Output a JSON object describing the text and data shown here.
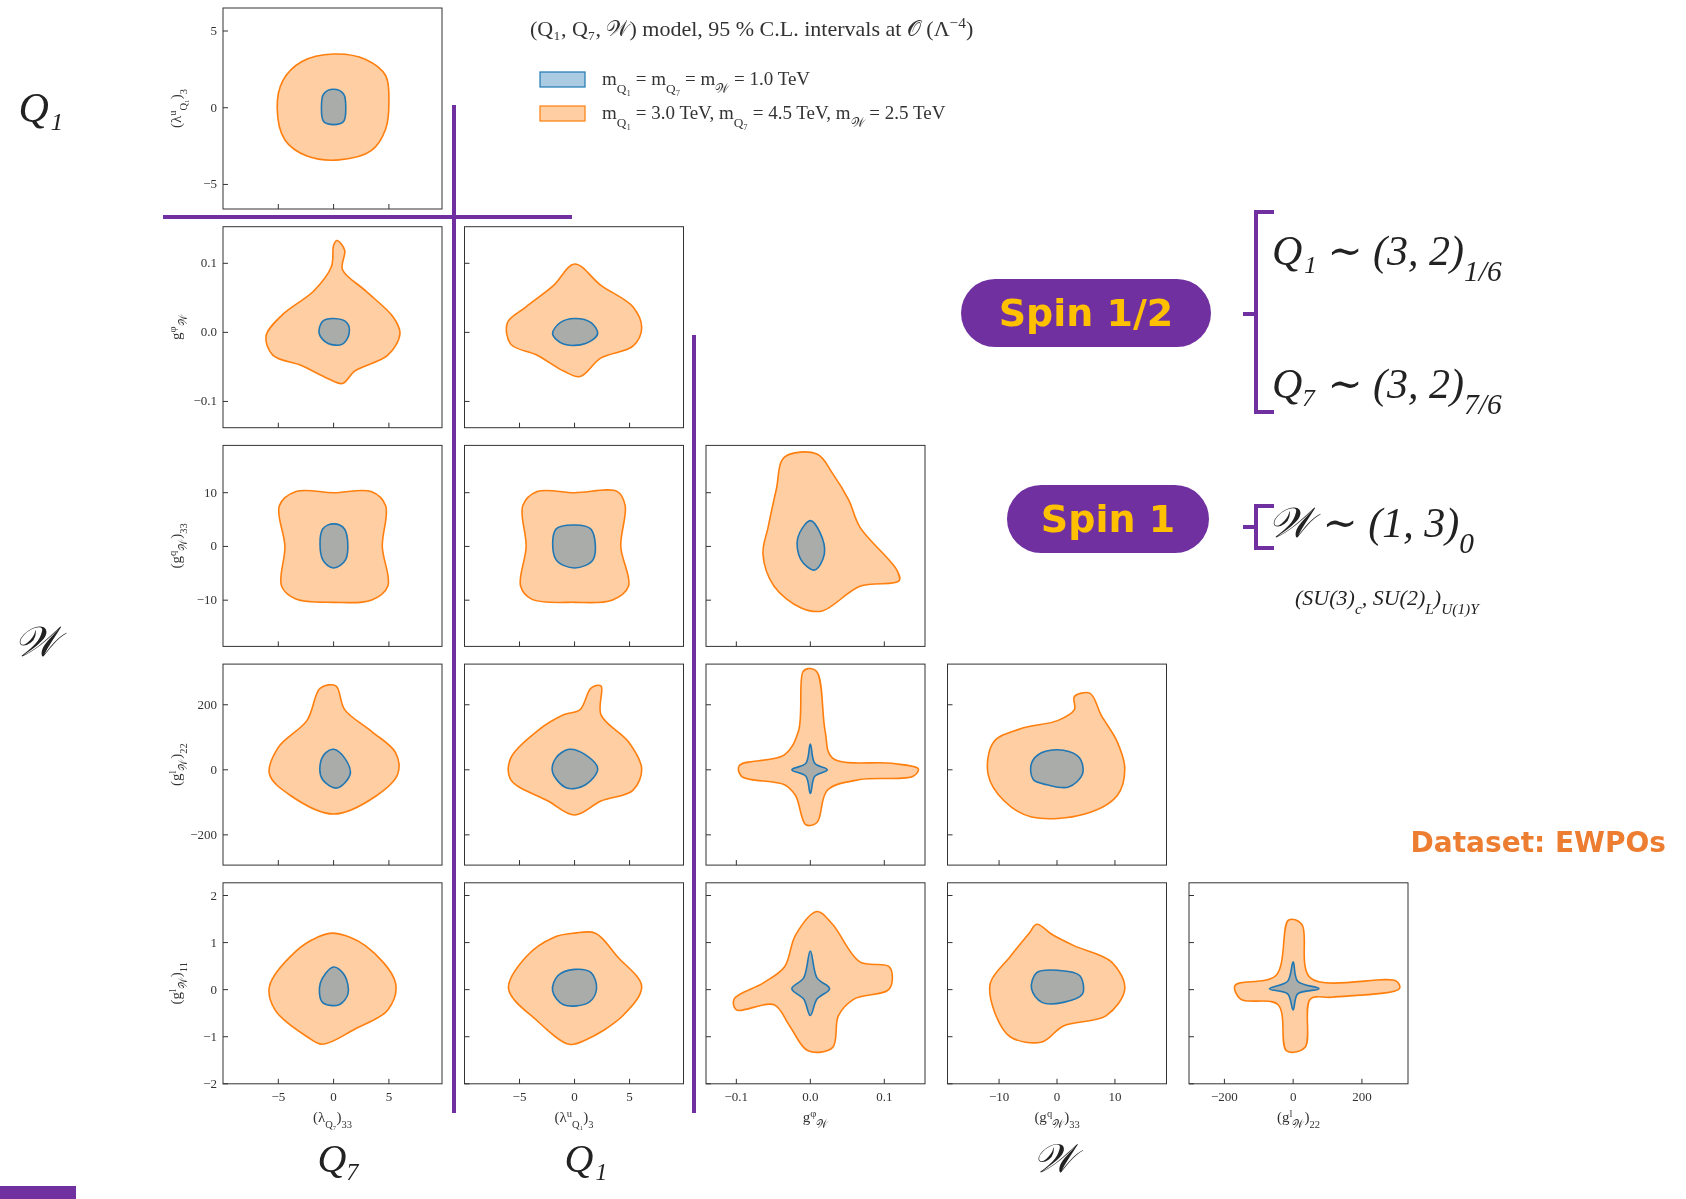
{
  "chart_data": [
    {
      "type": "area",
      "legend": "top right",
      "annotations": [
        "Q₁",
        "𝒲",
        "Q₇",
        "Q₁",
        "𝒲",
        "Spin 1/2",
        "Spin 1",
        "Q₁ ∼ (3, 2)$_{1/6}$",
        "Q₇ ∼ (3, 2)$_{7/6}$",
        "𝒲 ∼ (1, 3)$_{0}$",
        "(SU(3)$_{c}$, SU(2)$_{L}$)$_{U(1)Y}$",
        "Dataset: EWPOs",
        "(Q₁, Q₇, 𝒲) model, 95 % C.L. intervals at 𝒪 (Λ$^{−4}$)"
      ],
      "xlim": [
        -10,
        9.8
      ],
      "xticks": [
        -5,
        0,
        5
      ],
      "ylim": [
        -6.6,
        6.5
      ],
      "yticks": [
        -5,
        0,
        5
      ],
      "ylabel": "(λ$^{u}$$_{Q₁}$)$_{3}$",
      "tick_labels": "y",
      "series": [
        {
          "name": "m$_{Q₁}$ = 3.0 TeV, m$_{Q₇}$ = 4.5 TeV, m$_{𝒲}$ = 2.5 TeV",
          "color": "#ff7f0e",
          "x": [
            0,
            2.9,
            4.7,
            5.0,
            4.7,
            3.4,
            0.5,
            -2.4,
            -4.4,
            -5.1,
            -4.6,
            -2.9
          ],
          "values": [
            3.5,
            3.15,
            2.1,
            0.35,
            -1.4,
            -2.8,
            -3.4,
            -3.15,
            -2.1,
            0,
            1.75,
            3.0
          ]
        },
        {
          "name": "m$_{Q₁}$ = m$_{Q₇}$ = m$_{𝒲}$ = 1.0 TeV",
          "color": "#1f77b4",
          "x": [
            0,
            0.9,
            1.1,
            0.9,
            0,
            -0.9,
            -1.1,
            -0.9
          ],
          "values": [
            1.2,
            0.9,
            0,
            -0.9,
            -1.1,
            -0.9,
            0,
            0.9
          ]
        }
      ]
    },
    {
      "type": "area",
      "xlim": [
        -10,
        9.8
      ],
      "xticks": [
        -5,
        0,
        5
      ],
      "ylim": [
        -0.138,
        0.153
      ],
      "yticks": [
        {
          "value": -0.1,
          "label": "−0.1"
        },
        {
          "value": 0,
          "label": "0.0"
        },
        {
          "value": 0.1,
          "label": "0.1"
        }
      ],
      "ylabel": "g$^{φ}$$_{𝒲}$",
      "tick_labels": "y",
      "series": [
        {
          "color": "#ff7f0e",
          "x": [
            0.3,
            1.0,
            0.8,
            2.9,
            5.4,
            6.0,
            4.9,
            1.9,
            0.8,
            -0.5,
            -2.9,
            -5.5,
            -6.1,
            -4.6,
            -1.8,
            -0.2,
            0
          ],
          "values": [
            0.133,
            0.119,
            0.091,
            0.06,
            0.022,
            -0.002,
            -0.033,
            -0.056,
            -0.074,
            -0.067,
            -0.048,
            -0.033,
            -0.005,
            0.026,
            0.06,
            0.095,
            0.126
          ]
        },
        {
          "color": "#1f77b4",
          "x": [
            0,
            1.2,
            1.4,
            0.8,
            -0.5,
            -1.3,
            -1.0
          ],
          "values": [
            0.02,
            0.014,
            -0.002,
            -0.017,
            -0.016,
            -0.002,
            0.016
          ]
        }
      ]
    },
    {
      "type": "area",
      "xlim": [
        -10,
        9.9
      ],
      "xticks": [
        -5,
        0,
        5
      ],
      "ylim": [
        -0.138,
        0.153
      ],
      "yticks": [
        -0.1,
        0,
        0.1
      ],
      "tick_labels": false,
      "series": [
        {
          "color": "#ff7f0e",
          "x": [
            0,
            2.4,
            5.3,
            6.1,
            5.3,
            2.4,
            0.5,
            -1.0,
            -3.4,
            -5.8,
            -6.1,
            -4.4,
            -1.9
          ],
          "values": [
            0.099,
            0.068,
            0.037,
            0.006,
            -0.02,
            -0.037,
            -0.064,
            -0.056,
            -0.033,
            -0.017,
            0.014,
            0.037,
            0.068
          ]
        },
        {
          "color": "#1f77b4",
          "x": [
            0,
            1.5,
            2.1,
            1.0,
            -1.0,
            -2.0,
            -1.3
          ],
          "values": [
            0.02,
            0.014,
            -0.002,
            -0.016,
            -0.017,
            -0.002,
            0.014
          ]
        }
      ]
    },
    {
      "type": "area",
      "xlim": [
        -10,
        9.8
      ],
      "xticks": [
        -5,
        0,
        5
      ],
      "ylim": [
        -18.6,
        18.8
      ],
      "yticks": [
        -10,
        0,
        10
      ],
      "ylabel": "(g$^{q}$$_{𝒲}$)$_{33}$",
      "tick_labels": "y",
      "series": [
        {
          "color": "#ff7f0e",
          "x": [
            0,
            3.4,
            4.7,
            4.4,
            4.9,
            3.4,
            0,
            -3.4,
            -4.7,
            -4.4,
            -4.9,
            -3.4
          ],
          "values": [
            10,
            10.2,
            7.6,
            0,
            -7.4,
            -10,
            -10.4,
            -9.8,
            -7.4,
            0,
            7.6,
            10.2
          ]
        },
        {
          "color": "#1f77b4",
          "x": [
            0,
            1.0,
            1.1,
            0,
            -1.0,
            -1.0
          ],
          "values": [
            4.2,
            3.2,
            -2.4,
            -4,
            -2.4,
            3.2
          ]
        }
      ]
    },
    {
      "type": "area",
      "xlim": [
        -10,
        9.9
      ],
      "xticks": [
        -5,
        0,
        5
      ],
      "ylim": [
        -18.6,
        18.8
      ],
      "yticks": [
        -10,
        0,
        10
      ],
      "tick_labels": false,
      "series": [
        {
          "color": "#ff7f0e",
          "x": [
            0,
            3.9,
            4.6,
            4.2,
            4.9,
            3.4,
            0,
            -3.9,
            -4.9,
            -4.4,
            -4.7,
            -3.4
          ],
          "values": [
            10,
            10.2,
            7.6,
            0,
            -7.4,
            -10,
            -10.4,
            -9.8,
            -7.4,
            0,
            7.6,
            10.2
          ]
        },
        {
          "color": "#1f77b4",
          "x": [
            0,
            1.5,
            1.7,
            0,
            -1.7,
            -1.7
          ],
          "values": [
            4,
            3.2,
            -2.4,
            -4,
            -2.4,
            3.2
          ]
        }
      ]
    },
    {
      "type": "area",
      "xlim": [
        -0.141,
        0.155
      ],
      "xticks": [
        -0.1,
        0,
        0.1
      ],
      "ylim": [
        -18.6,
        18.8
      ],
      "yticks": [
        -10,
        0,
        10
      ],
      "tick_labels": false,
      "series": [
        {
          "color": "#ff7f0e",
          "x": [
            -0.035,
            0.009,
            0.03,
            0.052,
            0.067,
            0.117,
            0.12,
            0.067,
            0.016,
            -0.013,
            -0.049,
            -0.064,
            -0.057,
            -0.046
          ],
          "values": [
            16.6,
            17.2,
            13.6,
            8.6,
            3.6,
            -4.4,
            -6.4,
            -7.4,
            -12,
            -11.4,
            -7.4,
            -1.4,
            3.6,
            10.6
          ]
        },
        {
          "color": "#1f77b4",
          "x": [
            0,
            0.013,
            0.019,
            0.006,
            -0.013,
            -0.017
          ],
          "values": [
            4.8,
            2.6,
            -1.4,
            -4.4,
            -2.4,
            1.6
          ]
        }
      ]
    },
    {
      "type": "area",
      "xlim": [
        -10,
        9.8
      ],
      "xticks": [
        -5,
        0,
        5
      ],
      "ylim": [
        -293,
        325
      ],
      "yticks": [
        -200,
        0,
        200
      ],
      "ylabel": "(g$^{l}$$_{𝒲}$)$_{22}$",
      "tick_labels": "y",
      "series": [
        {
          "color": "#ff7f0e",
          "x": [
            -1.2,
            0.2,
            1.0,
            3.4,
            5.6,
            5.8,
            3.9,
            0,
            -3.9,
            -5.8,
            -5.0,
            -2.4
          ],
          "values": [
            251,
            258,
            185,
            119,
            53,
            -13,
            -79,
            -136,
            -79,
            -13,
            69,
            152
          ]
        },
        {
          "color": "#1f77b4",
          "x": [
            0,
            1.0,
            1.5,
            0.3,
            -1.0,
            -1.2,
            -0.7
          ],
          "values": [
            63,
            36,
            -13,
            -56,
            -30,
            20,
            53
          ]
        }
      ]
    },
    {
      "type": "area",
      "xlim": [
        -10,
        9.9
      ],
      "xticks": [
        -5,
        0,
        5
      ],
      "ylim": [
        -293,
        325
      ],
      "yticks": [
        -200,
        0,
        200
      ],
      "tick_labels": false,
      "series": [
        {
          "color": "#ff7f0e",
          "x": [
            1.5,
            2.4,
            2.4,
            4.9,
            6.1,
            5.3,
            2.4,
            0,
            -2.4,
            -5.8,
            -5.8,
            -3.4,
            -1.0,
            0.5
          ],
          "values": [
            251,
            258,
            169,
            86,
            3,
            -63,
            -96,
            -139,
            -96,
            -30,
            36,
            119,
            169,
            185
          ]
        },
        {
          "color": "#1f77b4",
          "x": [
            -0.5,
            1.0,
            2.1,
            1.0,
            -0.7,
            -2.0,
            -1.7
          ],
          "values": [
            63,
            46,
            3,
            -46,
            -56,
            -7,
            36
          ]
        }
      ]
    },
    {
      "type": "area",
      "xlim": [
        -0.141,
        0.155
      ],
      "xticks": [
        -0.1,
        0,
        0.1
      ],
      "ylim": [
        -293,
        325
      ],
      "yticks": [
        -200,
        0,
        200
      ],
      "tick_labels": false,
      "series": [
        {
          "color": "#ff7f0e",
          "x": [
            -0.003,
            0.009,
            0.02,
            0.03,
            0.11,
            0.146,
            0.139,
            0.067,
            0.023,
            0.009,
            -0.006,
            -0.02,
            -0.035,
            -0.093,
            -0.096,
            -0.035,
            -0.016,
            -0.01
          ],
          "values": [
            311,
            301,
            119,
            36,
            20,
            3,
            -20,
            -30,
            -63,
            -162,
            -169,
            -79,
            -46,
            -20,
            13,
            46,
            119,
            301
          ]
        },
        {
          "color": "#1f77b4",
          "x": [
            0,
            0.006,
            0.023,
            0.006,
            0,
            -0.006,
            -0.025,
            -0.006
          ],
          "values": [
            79,
            20,
            0,
            -20,
            -73,
            -20,
            0,
            20
          ]
        }
      ]
    },
    {
      "type": "area",
      "xlim": [
        -18.9,
        18.9
      ],
      "xticks": [
        -10,
        0,
        10
      ],
      "ylim": [
        -293,
        325
      ],
      "yticks": [
        -200,
        0,
        200
      ],
      "tick_labels": false,
      "series": [
        {
          "color": "#ff7f0e",
          "x": [
            3.0,
            5.7,
            7.6,
            10.4,
            11.7,
            10.4,
            4.8,
            -4.4,
            -9.1,
            -11.9,
            -10.9,
            -6.3,
            0.2,
            3.0
          ],
          "values": [
            225,
            235,
            169,
            86,
            3,
            -79,
            -136,
            -145,
            -96,
            -13,
            86,
            126,
            152,
            185
          ]
        },
        {
          "color": "#1f77b4",
          "x": [
            -2.6,
            1.1,
            3.9,
            4.4,
            2.0,
            -1.7,
            -4.1,
            -4.4
          ],
          "values": [
            53,
            60,
            36,
            -13,
            -53,
            -46,
            -30,
            20
          ]
        }
      ]
    },
    {
      "type": "area",
      "xlim": [
        -10,
        9.8
      ],
      "xticks": [
        -5,
        0,
        5
      ],
      "ylim": [
        -2,
        2.27
      ],
      "yticks": [
        -2,
        -1,
        0,
        1,
        2
      ],
      "xlabel": "(λ$_{Q₇}$)$_{33}$",
      "ylabel": "(g$^{l}$$_{𝒲}$)$_{11}$",
      "series": [
        {
          "color": "#ff7f0e",
          "x": [
            0,
            2.9,
            5.6,
            4.9,
            1.9,
            -1.0,
            -2.4,
            -5.3,
            -5.8,
            -3.4,
            -1.5
          ],
          "values": [
            1.2,
            0.93,
            0.14,
            -0.43,
            -0.84,
            -1.16,
            -1.0,
            -0.43,
            0.07,
            0.82,
            1.11
          ]
        },
        {
          "color": "#1f77b4",
          "x": [
            0,
            1.0,
            1.3,
            0.5,
            -1.0,
            -1.2
          ],
          "values": [
            0.48,
            0.3,
            -0.09,
            -0.32,
            -0.27,
            0.14
          ]
        }
      ]
    },
    {
      "type": "area",
      "xlim": [
        -10,
        9.9
      ],
      "xticks": [
        -5,
        0,
        5
      ],
      "ylim": [
        -2,
        2.27
      ],
      "yticks": [
        -2,
        -1,
        0,
        1,
        2
      ],
      "xlabel": "(λ$^{u}$$_{Q₁}$)$_{3}$",
      "tick_labels": "x",
      "series": [
        {
          "color": "#ff7f0e",
          "x": [
            0,
            1.9,
            3.9,
            6.1,
            4.4,
            1.0,
            -0.5,
            -3.4,
            -6.0,
            -4.4,
            -1.9
          ],
          "values": [
            1.2,
            1.2,
            0.7,
            0.07,
            -0.55,
            -1.07,
            -1.16,
            -0.66,
            0.02,
            0.7,
            1.11
          ]
        },
        {
          "color": "#1f77b4",
          "x": [
            0,
            1.5,
            2.0,
            1.3,
            -1.0,
            -2.0,
            -1.5
          ],
          "values": [
            0.43,
            0.36,
            0.02,
            -0.27,
            -0.32,
            -0.02,
            0.3
          ]
        }
      ]
    },
    {
      "type": "area",
      "xlim": [
        -0.141,
        0.155
      ],
      "xticks": [
        {
          "value": -0.1,
          "label": "−0.1"
        },
        {
          "value": 0,
          "label": "0.0"
        },
        {
          "value": 0.1,
          "label": "0.1"
        }
      ],
      "ylim": [
        -2,
        2.27
      ],
      "yticks": [
        -2,
        -1,
        0,
        1,
        2
      ],
      "xlabel": "g$^{φ}$$_{𝒲}$",
      "tick_labels": "x",
      "series": [
        {
          "color": "#ff7f0e",
          "x": [
            0.009,
            0.03,
            0.067,
            0.107,
            0.107,
            0.059,
            0.038,
            0.03,
            -0.003,
            -0.028,
            -0.049,
            -0.1,
            -0.103,
            -0.064,
            -0.035,
            -0.02
          ],
          "values": [
            1.66,
            1.39,
            0.59,
            0.48,
            0.02,
            -0.2,
            -0.55,
            -1.23,
            -1.3,
            -0.77,
            -0.32,
            -0.43,
            -0.2,
            0.14,
            0.48,
            1.16
          ]
        },
        {
          "color": "#1f77b4",
          "x": [
            0,
            0.009,
            0.026,
            0.009,
            0,
            -0.009,
            -0.025,
            -0.009
          ],
          "values": [
            0.82,
            0.25,
            0.02,
            -0.2,
            -0.55,
            -0.2,
            0.02,
            0.25
          ]
        }
      ]
    },
    {
      "type": "area",
      "xlim": [
        -18.9,
        18.9
      ],
      "xticks": [
        -10,
        0,
        10
      ],
      "ylim": [
        -2,
        2.27
      ],
      "yticks": [
        -2,
        -1,
        0,
        1,
        2
      ],
      "xlabel": "(g$^{q}$$_{𝒲}$)$_{33}$",
      "tick_labels": "x",
      "series": [
        {
          "color": "#ff7f0e",
          "x": [
            -3.5,
            -0.7,
            3.0,
            9.4,
            11.7,
            8.5,
            1.1,
            -2.6,
            -8.1,
            -10.9,
            -11.5,
            -8.1,
            -4.8
          ],
          "values": [
            1.39,
            1.16,
            0.93,
            0.59,
            0.02,
            -0.55,
            -0.77,
            -1.11,
            -1.0,
            -0.43,
            0.14,
            0.7,
            1.2
          ]
        },
        {
          "color": "#1f77b4",
          "x": [
            -3.5,
            0.2,
            3.9,
            4.4,
            1.1,
            -2.6,
            -4.4
          ],
          "values": [
            0.36,
            0.41,
            0.3,
            -0.09,
            -0.27,
            -0.27,
            0.02
          ]
        }
      ]
    },
    {
      "type": "area",
      "xlim": [
        -303,
        334
      ],
      "xticks": [
        -200,
        0,
        200
      ],
      "ylim": [
        -2,
        2.27
      ],
      "yticks": [
        -2,
        -1,
        0,
        1,
        2
      ],
      "xlabel": "(g$^{l}$$_{𝒲}$)$_{22}$",
      "tick_labels": "x",
      "series": [
        {
          "color": "#ff7f0e",
          "x": [
            -13,
            25,
            50,
            300,
            309,
            113,
            50,
            34,
            -19,
            -44,
            -153,
            -169,
            -50
          ],
          "values": [
            1.48,
            1.39,
            0.25,
            0.18,
            0.02,
            -0.16,
            -0.2,
            -1.23,
            -1.3,
            -0.32,
            -0.2,
            0.09,
            0.3
          ]
        },
        {
          "color": "#1f77b4",
          "x": [
            0,
            13,
            75,
            13,
            0,
            -16,
            -69,
            -16
          ],
          "values": [
            0.59,
            0.18,
            0.02,
            -0.09,
            -0.43,
            -0.09,
            0.02,
            0.18
          ]
        }
      ]
    }
  ]
}
